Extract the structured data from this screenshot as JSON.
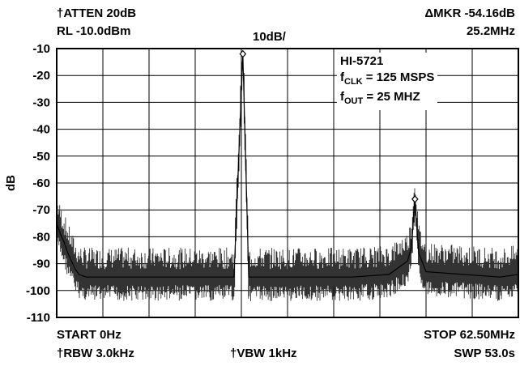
{
  "header": {
    "atten": "†ATTEN 20dB",
    "ref_level": "RL -10.0dBm",
    "scale": "10dB/",
    "marker_delta": "ΔMKR -54.16dB",
    "marker_freq": "25.2MHz"
  },
  "footer": {
    "start": "START 0Hz",
    "stop": "STOP 62.50MHz",
    "rbw": "†RBW 3.0kHz",
    "vbw": "†VBW 1kHz",
    "sweep": "SWP 53.0s"
  },
  "annotation": {
    "part": "HI-5721",
    "fclk_sym": "f",
    "fclk_sub": "CLK",
    "fclk_val": " = 125 MSPS",
    "fout_sym": "f",
    "fout_sub": "OUT",
    "fout_val": " = 25 MHZ"
  },
  "chart_data": {
    "type": "line",
    "title": "",
    "xlabel": "",
    "ylabel": "dB",
    "xlim": [
      0,
      62.5
    ],
    "ylim": [
      -110,
      -10
    ],
    "x_unit": "MHz",
    "yticks": [
      -10,
      -20,
      -30,
      -40,
      -50,
      -60,
      -70,
      -80,
      -90,
      -100,
      -110
    ],
    "grid": true,
    "series": [
      {
        "x": [
          0,
          0.5,
          1,
          1.5,
          2,
          2.5,
          3,
          4,
          5,
          7,
          10,
          13,
          15,
          18,
          20,
          22,
          24,
          25.2,
          26,
          28,
          30,
          35,
          40,
          45,
          47.5,
          48,
          48.5,
          49,
          50,
          55,
          60,
          62.5
        ],
        "y": [
          -75,
          -79,
          -82,
          -86,
          -89,
          -92,
          -94,
          -95,
          -95,
          -95,
          -95,
          -95,
          -95,
          -95,
          -95,
          -95,
          -95,
          -12,
          -95,
          -95,
          -95,
          -95,
          -95,
          -94,
          -89,
          -84,
          -66,
          -86,
          -93,
          -94,
          -95,
          -94
        ]
      }
    ],
    "markers": [
      {
        "x": 25.2,
        "y": -12
      },
      {
        "x": 48.5,
        "y": -66
      }
    ]
  }
}
